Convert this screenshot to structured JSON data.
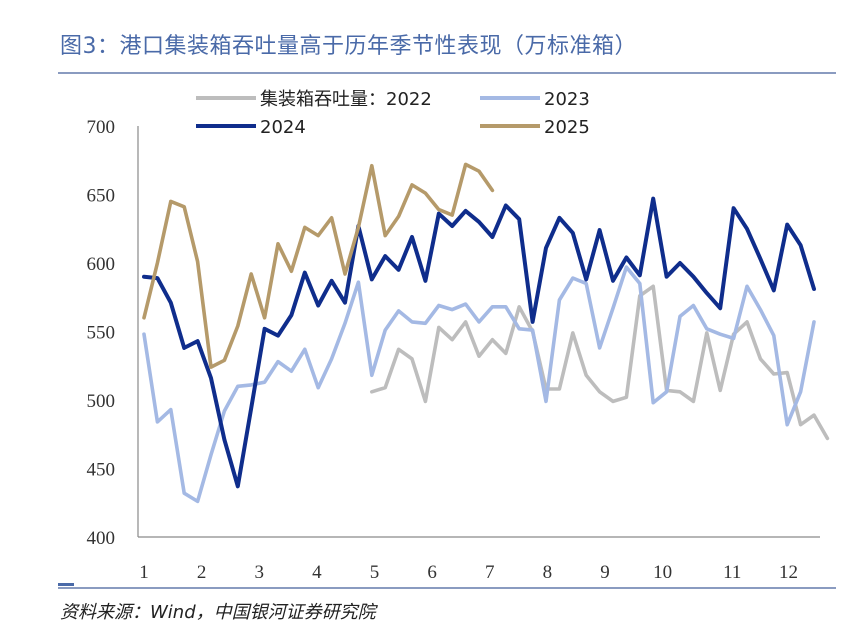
{
  "header": {
    "title": "图3：港口集装箱吞吐量高于历年季节性表现（万标准箱）"
  },
  "footer": {
    "source": "资料来源：Wind，中国银河证券研究院"
  },
  "chart_data": {
    "type": "line",
    "title": "图3：港口集装箱吞吐量高于历年季节性表现（万标准箱）",
    "xlabel": "",
    "ylabel": "",
    "x": [
      1,
      2,
      3,
      4,
      5,
      6,
      7,
      8,
      9,
      10,
      11,
      12,
      13,
      14,
      15,
      16,
      17,
      18,
      19,
      20,
      21,
      22,
      23,
      24,
      25,
      26,
      27,
      28,
      29,
      30,
      31,
      32,
      33,
      34,
      35,
      36,
      37,
      38,
      39,
      40,
      41,
      42,
      43,
      44,
      45,
      46,
      47,
      48,
      49,
      50,
      51,
      52
    ],
    "x_tick_labels": [
      "1",
      "2",
      "3",
      "4",
      "5",
      "6",
      "7",
      "8",
      "9",
      "10",
      "11",
      "12"
    ],
    "x_tick_positions": [
      1,
      5.3,
      9.6,
      13.9,
      18.2,
      22.5,
      26.8,
      31.1,
      35.4,
      39.7,
      44.9,
      49.1
    ],
    "ylim": [
      400,
      700
    ],
    "yticks": [
      400,
      450,
      500,
      550,
      600,
      650,
      700
    ],
    "legend_position": "top",
    "series": [
      {
        "name": "集装箱吞吐量：2022",
        "color": "#bdbdbd",
        "values": [
          null,
          null,
          null,
          null,
          null,
          null,
          null,
          null,
          null,
          null,
          null,
          null,
          null,
          null,
          null,
          null,
          null,
          506,
          509,
          537,
          530,
          499,
          553,
          544,
          557,
          532,
          544,
          534,
          568,
          550,
          508,
          508,
          549,
          518,
          506,
          499,
          502,
          576,
          583,
          507,
          506,
          499,
          549,
          507,
          548,
          557,
          530,
          519,
          520,
          482,
          489,
          472
        ]
      },
      {
        "name": "2023",
        "color": "#a4b9e4",
        "values": [
          548,
          484,
          493,
          432,
          426,
          460,
          492,
          510,
          511,
          513,
          528,
          521,
          537,
          509,
          530,
          556,
          586,
          518,
          551,
          565,
          557,
          556,
          569,
          566,
          570,
          557,
          568,
          568,
          552,
          551,
          499,
          573,
          589,
          585,
          538,
          567,
          597,
          585,
          498,
          506,
          561,
          569,
          552,
          548,
          545,
          583,
          566,
          547,
          482,
          506,
          557,
          null
        ]
      },
      {
        "name": "2024",
        "color": "#0f2d8c",
        "values": [
          590,
          589,
          571,
          538,
          543,
          516,
          471,
          437,
          494,
          552,
          547,
          562,
          593,
          569,
          587,
          571,
          627,
          588,
          605,
          595,
          619,
          587,
          636,
          627,
          638,
          630,
          619,
          642,
          632,
          557,
          611,
          633,
          622,
          588,
          624,
          587,
          604,
          591,
          647,
          590,
          600,
          590,
          578,
          567,
          640,
          625,
          603,
          580,
          628,
          613,
          581,
          null
        ]
      },
      {
        "name": "2025",
        "color": "#b59a6a",
        "values": [
          560,
          600,
          645,
          641,
          601,
          524,
          529,
          554,
          592,
          560,
          614,
          594,
          626,
          620,
          633,
          592,
          626,
          671,
          620,
          634,
          657,
          651,
          639,
          635,
          672,
          667,
          653,
          null,
          null,
          null,
          null,
          null,
          null,
          null,
          null,
          null,
          null,
          null,
          null,
          null,
          null,
          null,
          null,
          null,
          null,
          null,
          null,
          null,
          null,
          null,
          null,
          null
        ]
      }
    ]
  }
}
